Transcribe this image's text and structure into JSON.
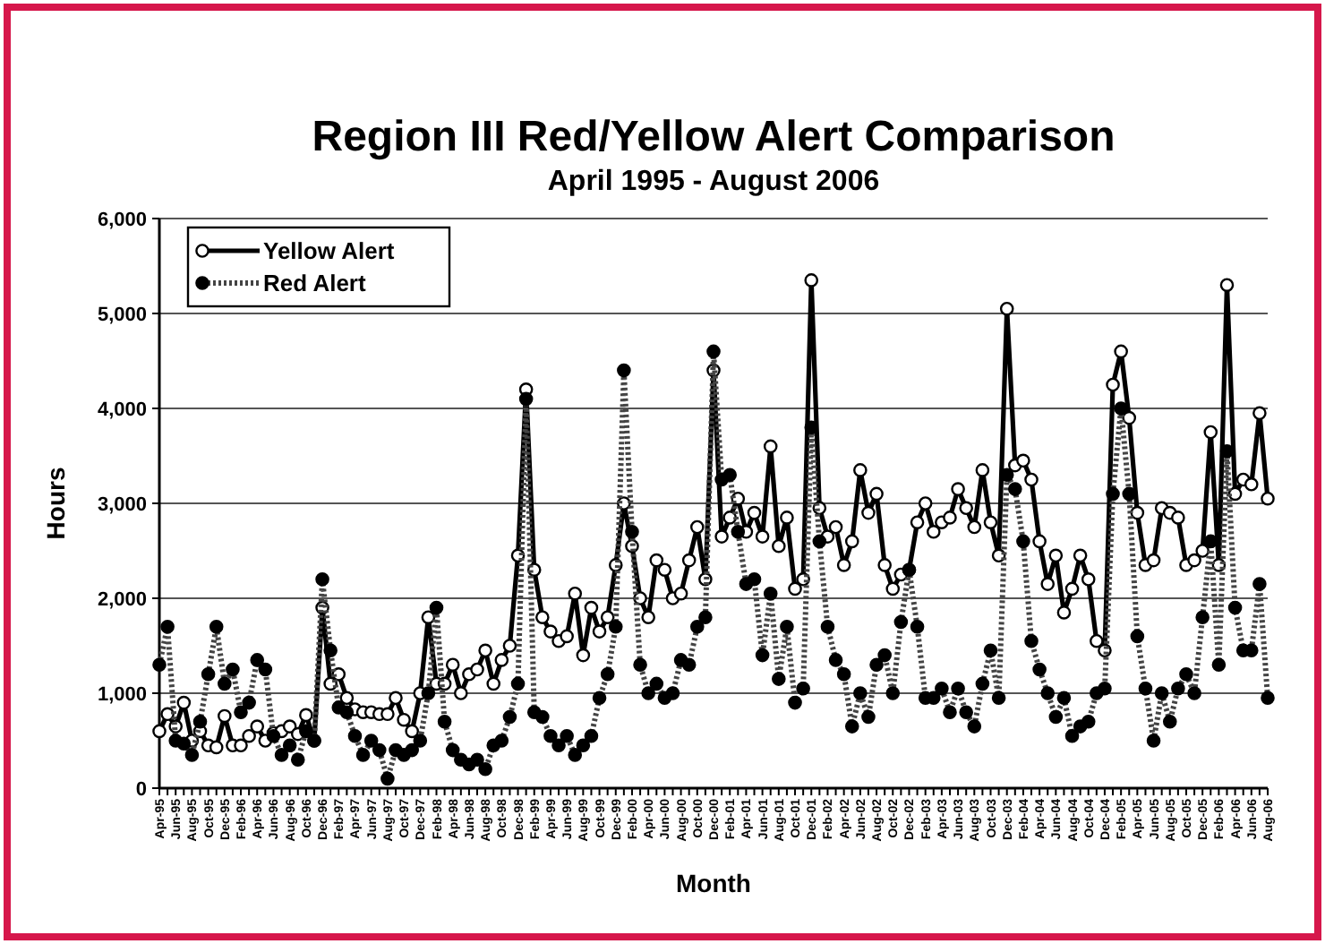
{
  "chart_data": {
    "type": "line",
    "title": "Region III Red/Yellow Alert Comparison",
    "subtitle": "April 1995 - August 2006",
    "xlabel": "Month",
    "ylabel": "Hours",
    "categories": [
      "Apr-95",
      null,
      "Jun-95",
      null,
      "Aug-95",
      null,
      "Oct-95",
      null,
      "Dec-95",
      null,
      "Feb-96",
      null,
      "Apr-96",
      null,
      "Jun-96",
      null,
      "Aug-96",
      null,
      "Oct-96",
      null,
      "Dec-96",
      null,
      "Feb-97",
      null,
      "Apr-97",
      null,
      "Jun-97",
      null,
      "Aug-97",
      null,
      "Oct-97",
      null,
      "Dec-97",
      null,
      "Feb-98",
      null,
      "Apr-98",
      null,
      "Jun-98",
      null,
      "Aug-98",
      null,
      "Oct-98",
      null,
      "Dec-98",
      null,
      "Feb-99",
      null,
      "Apr-99",
      null,
      "Jun-99",
      null,
      "Aug-99",
      null,
      "Oct-99",
      null,
      "Dec-99",
      null,
      "Feb-00",
      null,
      "Apr-00",
      null,
      "Jun-00",
      null,
      "Aug-00",
      null,
      "Oct-00",
      null,
      "Dec-00",
      null,
      "Feb-01",
      null,
      "Apr-01",
      null,
      "Jun-01",
      null,
      "Aug-01",
      null,
      "Oct-01",
      null,
      "Dec-01",
      null,
      "Feb-02",
      null,
      "Apr-02",
      null,
      "Jun-02",
      null,
      "Aug-02",
      null,
      "Oct-02",
      null,
      "Dec-02",
      null,
      "Feb-03",
      null,
      "Apr-03",
      null,
      "Jun-03",
      null,
      "Aug-03",
      null,
      "Oct-03",
      null,
      "Dec-03",
      null,
      "Feb-04",
      null,
      "Apr-04",
      null,
      "Jun-04",
      null,
      "Aug-04",
      null,
      "Oct-04",
      null,
      "Dec-04",
      null,
      "Feb-05",
      null,
      "Apr-05",
      null,
      "Jun-05",
      null,
      "Aug-05",
      null,
      "Oct-05",
      null,
      "Dec-05",
      null,
      "Feb-06",
      null,
      "Apr-06",
      null,
      "Jun-06",
      null,
      "Aug-06"
    ],
    "series": [
      {
        "name": "Yellow Alert",
        "color": "#000000",
        "line_style": "solid",
        "values": [
          600,
          780,
          650,
          900,
          500,
          600,
          450,
          430,
          760,
          450,
          450,
          550,
          650,
          500,
          580,
          600,
          650,
          570,
          770,
          500,
          1900,
          1100,
          1200,
          950,
          830,
          800,
          800,
          780,
          780,
          950,
          720,
          600,
          1000,
          1800,
          1100,
          1100,
          1300,
          1000,
          1200,
          1250,
          1450,
          1100,
          1350,
          1500,
          2450,
          4200,
          2300,
          1800,
          1650,
          1550,
          1600,
          2050,
          1400,
          1900,
          1650,
          1800,
          2350,
          3000,
          2550,
          2000,
          1800,
          2400,
          2300,
          2000,
          2050,
          2400,
          2750,
          2200,
          4400,
          2650,
          2850,
          3050,
          2700,
          2900,
          2650,
          3600,
          2550,
          2850,
          2100,
          2200,
          5350,
          2950,
          2650,
          2750,
          2350,
          2600,
          3350,
          2900,
          3100,
          2350,
          2100,
          2250,
          2300,
          2800,
          3000,
          2700,
          2800,
          2850,
          3150,
          2950,
          2750,
          3350,
          2800,
          2450,
          5050,
          3400,
          3450,
          3250,
          2600,
          2150,
          2450,
          1850,
          2100,
          2450,
          2200,
          1550,
          1450,
          4250,
          4600,
          3900,
          2900,
          2350,
          2400,
          2950,
          2900,
          2850,
          2350,
          2400,
          2500,
          3750,
          2350,
          5300,
          3100,
          3250,
          3200,
          3950,
          3050
        ]
      },
      {
        "name": "Red Alert",
        "color": "#000000",
        "line_style": "dotted",
        "values": [
          1300,
          1700,
          500,
          470,
          350,
          700,
          1200,
          1700,
          1100,
          1250,
          800,
          900,
          1350,
          1250,
          550,
          350,
          450,
          300,
          600,
          500,
          2200,
          1450,
          850,
          800,
          550,
          350,
          500,
          400,
          100,
          400,
          350,
          400,
          500,
          1000,
          1900,
          700,
          400,
          300,
          250,
          300,
          200,
          450,
          500,
          750,
          1100,
          4100,
          800,
          750,
          550,
          450,
          550,
          350,
          450,
          550,
          950,
          1200,
          1700,
          4400,
          2700,
          1300,
          1000,
          1100,
          950,
          1000,
          1350,
          1300,
          1700,
          1800,
          4600,
          3250,
          3300,
          2700,
          2150,
          2200,
          1400,
          2050,
          1150,
          1700,
          900,
          1050,
          3800,
          2600,
          1700,
          1350,
          1200,
          650,
          1000,
          750,
          1300,
          1400,
          1000,
          1750,
          2300,
          1700,
          950,
          950,
          1050,
          800,
          1050,
          800,
          650,
          1100,
          1450,
          950,
          3300,
          3150,
          2600,
          1550,
          1250,
          1000,
          750,
          950,
          550,
          650,
          700,
          1000,
          1050,
          3100,
          4000,
          3100,
          1600,
          1050,
          500,
          1000,
          700,
          1050,
          1200,
          1000,
          1800,
          2600,
          1300,
          3550,
          1900,
          1450,
          1450,
          2150,
          950
        ]
      }
    ],
    "ylim": [
      0,
      6000
    ],
    "yticks": [
      {
        "value": 0,
        "label": "0"
      },
      {
        "value": 1000,
        "label": "1,000"
      },
      {
        "value": 2000,
        "label": "2,000"
      },
      {
        "value": 3000,
        "label": "3,000"
      },
      {
        "value": 4000,
        "label": "4,000"
      },
      {
        "value": 5000,
        "label": "5,000"
      },
      {
        "value": 6000,
        "label": "6,000"
      }
    ],
    "grid": "y",
    "legend": "top left",
    "marker": "circle"
  }
}
